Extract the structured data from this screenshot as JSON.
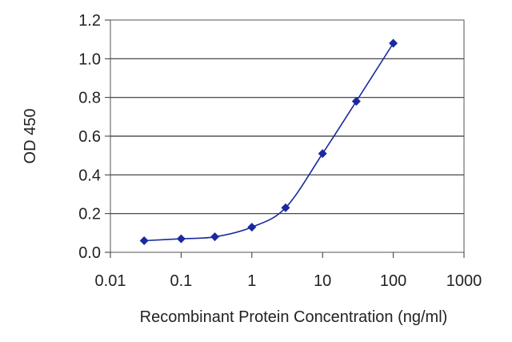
{
  "chart_data": {
    "type": "line",
    "title": "",
    "xlabel": "Recombinant Protein Concentration (ng/ml)",
    "ylabel": "OD 450",
    "x_scale": "log",
    "xlim": [
      0.01,
      1000
    ],
    "ylim": [
      0,
      1.2
    ],
    "x_ticks": [
      "0.01",
      "0.1",
      "1",
      "10",
      "100",
      "1000"
    ],
    "y_ticks": [
      "0.0",
      "0.2",
      "0.4",
      "0.6",
      "0.8",
      "1.0",
      "1.2"
    ],
    "grid": "horizontal",
    "legend": "none",
    "color": "#1a2a9e",
    "series": [
      {
        "x": [
          0.03,
          0.1,
          0.3,
          1,
          3,
          10,
          30,
          100
        ],
        "y": [
          0.06,
          0.07,
          0.08,
          0.13,
          0.23,
          0.51,
          0.78,
          1.08
        ]
      }
    ]
  }
}
